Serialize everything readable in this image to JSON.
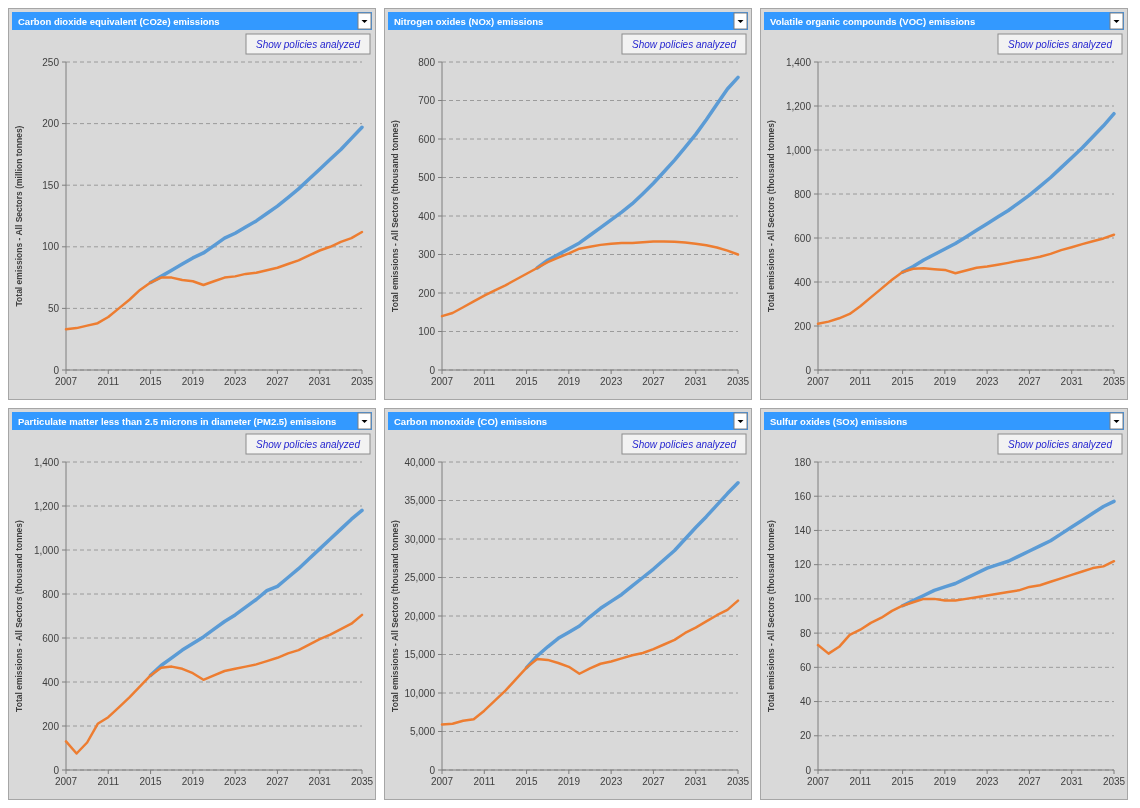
{
  "chart_data": [
    {
      "type": "line",
      "title": "Carbon dioxide equivalent (CO2e) emissions",
      "ylabel": "Total emissions - All Sectors (million tonnes)",
      "annotations": [
        "Show policies analyzed"
      ],
      "x": [
        2007,
        2008,
        2009,
        2010,
        2011,
        2012,
        2013,
        2014,
        2015,
        2016,
        2017,
        2018,
        2019,
        2020,
        2021,
        2022,
        2023,
        2024,
        2025,
        2026,
        2027,
        2028,
        2029,
        2030,
        2031,
        2032,
        2033,
        2034,
        2035
      ],
      "xlim": [
        2007,
        2035
      ],
      "xticks": [
        2007,
        2011,
        2015,
        2019,
        2023,
        2027,
        2031,
        2035
      ],
      "ylim": [
        0,
        250
      ],
      "yticks": [
        0,
        50,
        100,
        150,
        200,
        250
      ],
      "grid": "y",
      "line_style": "solid",
      "series": [
        {
          "color": "#5b9bd5",
          "values": [
            null,
            null,
            null,
            null,
            null,
            null,
            null,
            null,
            71,
            76,
            81,
            86,
            91,
            95,
            101,
            107,
            111,
            116,
            121,
            127,
            133,
            140,
            147,
            155,
            163,
            171,
            179,
            188,
            197
          ]
        },
        {
          "color": "#ed7d31",
          "values": [
            33,
            34,
            36,
            38,
            43,
            50,
            57,
            65,
            71,
            75,
            75,
            73,
            72,
            69,
            72,
            75,
            76,
            78,
            79,
            81,
            83,
            86,
            89,
            93,
            97,
            100,
            104,
            107,
            112
          ]
        }
      ]
    },
    {
      "type": "line",
      "title": "Nitrogen oxides (NOx) emissions",
      "ylabel": "Total emissions - All Sectors (thousand tonnes)",
      "annotations": [
        "Show policies analyzed"
      ],
      "x": [
        2007,
        2008,
        2009,
        2010,
        2011,
        2012,
        2013,
        2014,
        2015,
        2016,
        2017,
        2018,
        2019,
        2020,
        2021,
        2022,
        2023,
        2024,
        2025,
        2026,
        2027,
        2028,
        2029,
        2030,
        2031,
        2032,
        2033,
        2034,
        2035
      ],
      "xlim": [
        2007,
        2035
      ],
      "xticks": [
        2007,
        2011,
        2015,
        2019,
        2023,
        2027,
        2031,
        2035
      ],
      "ylim": [
        0,
        800
      ],
      "yticks": [
        0,
        100,
        200,
        300,
        400,
        500,
        600,
        700,
        800
      ],
      "grid": "y",
      "line_style": "solid",
      "series": [
        {
          "color": "#5b9bd5",
          "values": [
            null,
            null,
            null,
            null,
            null,
            null,
            null,
            null,
            null,
            265,
            285,
            300,
            315,
            330,
            350,
            370,
            390,
            410,
            432,
            458,
            485,
            515,
            545,
            578,
            612,
            650,
            690,
            730,
            760
          ]
        },
        {
          "color": "#ed7d31",
          "values": [
            140,
            148,
            163,
            178,
            193,
            207,
            220,
            235,
            250,
            265,
            280,
            292,
            303,
            315,
            320,
            325,
            328,
            330,
            330,
            332,
            334,
            334,
            333,
            331,
            328,
            324,
            318,
            310,
            300
          ]
        }
      ]
    },
    {
      "type": "line",
      "title": "Volatile organic compounds (VOC) emissions",
      "ylabel": "Total emissions - All Sectors (thousand tonnes)",
      "annotations": [
        "Show policies analyzed"
      ],
      "x": [
        2007,
        2008,
        2009,
        2010,
        2011,
        2012,
        2013,
        2014,
        2015,
        2016,
        2017,
        2018,
        2019,
        2020,
        2021,
        2022,
        2023,
        2024,
        2025,
        2026,
        2027,
        2028,
        2029,
        2030,
        2031,
        2032,
        2033,
        2034,
        2035
      ],
      "xlim": [
        2007,
        2035
      ],
      "xticks": [
        2007,
        2011,
        2015,
        2019,
        2023,
        2027,
        2031,
        2035
      ],
      "ylim": [
        0,
        1400
      ],
      "yticks": [
        0,
        {
          "value": 200,
          "label": "200"
        },
        {
          "value": 400,
          "label": "400"
        },
        {
          "value": 600,
          "label": "600"
        },
        {
          "value": 800,
          "label": "800"
        },
        {
          "value": 1000,
          "label": "1,000"
        },
        {
          "value": 1200,
          "label": "1,200"
        },
        {
          "value": 1400,
          "label": "1,400"
        }
      ],
      "grid": "y",
      "line_style": "solid",
      "series": [
        {
          "color": "#5b9bd5",
          "values": [
            null,
            null,
            null,
            null,
            null,
            null,
            null,
            null,
            445,
            470,
            500,
            525,
            550,
            575,
            605,
            635,
            665,
            695,
            725,
            760,
            795,
            835,
            875,
            920,
            965,
            1010,
            1060,
            1110,
            1165
          ]
        },
        {
          "color": "#ed7d31",
          "values": [
            210,
            220,
            235,
            255,
            290,
            330,
            370,
            410,
            445,
            460,
            462,
            458,
            455,
            440,
            452,
            465,
            470,
            478,
            487,
            497,
            505,
            515,
            528,
            545,
            558,
            572,
            585,
            598,
            615
          ]
        }
      ]
    },
    {
      "type": "line",
      "title": "Particulate matter less than 2.5 microns in diameter (PM2.5) emissions",
      "ylabel": "Total emissions - All Sectors (thousand tonnes)",
      "annotations": [
        "Show policies analyzed"
      ],
      "x": [
        2007,
        2008,
        2009,
        2010,
        2011,
        2012,
        2013,
        2014,
        2015,
        2016,
        2017,
        2018,
        2019,
        2020,
        2021,
        2022,
        2023,
        2024,
        2025,
        2026,
        2027,
        2028,
        2029,
        2030,
        2031,
        2032,
        2033,
        2034,
        2035
      ],
      "xlim": [
        2007,
        2035
      ],
      "xticks": [
        2007,
        2011,
        2015,
        2019,
        2023,
        2027,
        2031,
        2035
      ],
      "ylim": [
        0,
        1400
      ],
      "yticks": [
        0,
        {
          "value": 200,
          "label": "200"
        },
        {
          "value": 400,
          "label": "400"
        },
        {
          "value": 600,
          "label": "600"
        },
        {
          "value": 800,
          "label": "800"
        },
        {
          "value": 1000,
          "label": "1,000"
        },
        {
          "value": 1200,
          "label": "1,200"
        },
        {
          "value": 1400,
          "label": "1,400"
        }
      ],
      "grid": "y",
      "line_style": "solid",
      "series": [
        {
          "color": "#5b9bd5",
          "values": [
            null,
            null,
            null,
            null,
            null,
            null,
            null,
            null,
            430,
            475,
            510,
            545,
            575,
            605,
            640,
            675,
            705,
            740,
            775,
            815,
            835,
            875,
            915,
            960,
            1005,
            1050,
            1095,
            1140,
            1180
          ]
        },
        {
          "color": "#ed7d31",
          "values": [
            130,
            75,
            125,
            210,
            240,
            285,
            330,
            380,
            430,
            465,
            470,
            460,
            440,
            410,
            430,
            450,
            460,
            470,
            480,
            495,
            510,
            530,
            545,
            570,
            595,
            615,
            640,
            665,
            705
          ]
        }
      ]
    },
    {
      "type": "line",
      "title": "Carbon monoxide (CO) emissions",
      "ylabel": "Total emissions - All Sectors (thousand tonnes)",
      "annotations": [
        "Show policies analyzed"
      ],
      "x": [
        2007,
        2008,
        2009,
        2010,
        2011,
        2012,
        2013,
        2014,
        2015,
        2016,
        2017,
        2018,
        2019,
        2020,
        2021,
        2022,
        2023,
        2024,
        2025,
        2026,
        2027,
        2028,
        2029,
        2030,
        2031,
        2032,
        2033,
        2034,
        2035
      ],
      "xlim": [
        2007,
        2035
      ],
      "xticks": [
        2007,
        2011,
        2015,
        2019,
        2023,
        2027,
        2031,
        2035
      ],
      "ylim": [
        0,
        40000
      ],
      "yticks": [
        0,
        {
          "value": 5000,
          "label": "5,000"
        },
        {
          "value": 10000,
          "label": "10,000"
        },
        {
          "value": 15000,
          "label": "15,000"
        },
        {
          "value": 20000,
          "label": "20,000"
        },
        {
          "value": 25000,
          "label": "25,000"
        },
        {
          "value": 30000,
          "label": "30,000"
        },
        {
          "value": 35000,
          "label": "35,000"
        },
        {
          "value": 40000,
          "label": "40,000"
        }
      ],
      "grid": "y",
      "line_style": "solid",
      "series": [
        {
          "color": "#5b9bd5",
          "values": [
            null,
            null,
            null,
            null,
            null,
            null,
            null,
            null,
            13300,
            14800,
            16000,
            17100,
            17900,
            18700,
            19900,
            21000,
            21900,
            22800,
            23900,
            25000,
            26100,
            27300,
            28500,
            30000,
            31500,
            32900,
            34400,
            35900,
            37300
          ]
        },
        {
          "color": "#ed7d31",
          "values": [
            5900,
            6000,
            6400,
            6600,
            7700,
            9000,
            10300,
            11800,
            13300,
            14400,
            14300,
            13900,
            13400,
            12500,
            13200,
            13800,
            14100,
            14500,
            14900,
            15200,
            15700,
            16300,
            16900,
            17800,
            18500,
            19300,
            20100,
            20800,
            22000
          ]
        }
      ]
    },
    {
      "type": "line",
      "title": "Sulfur oxides (SOx) emissions",
      "ylabel": "Total emissions - All Sectors (thousand tonnes)",
      "annotations": [
        "Show policies analyzed"
      ],
      "x": [
        2007,
        2008,
        2009,
        2010,
        2011,
        2012,
        2013,
        2014,
        2015,
        2016,
        2017,
        2018,
        2019,
        2020,
        2021,
        2022,
        2023,
        2024,
        2025,
        2026,
        2027,
        2028,
        2029,
        2030,
        2031,
        2032,
        2033,
        2034,
        2035
      ],
      "xlim": [
        2007,
        2035
      ],
      "xticks": [
        2007,
        2011,
        2015,
        2019,
        2023,
        2027,
        2031,
        2035
      ],
      "ylim": [
        0,
        180
      ],
      "yticks": [
        0,
        20,
        40,
        60,
        80,
        100,
        120,
        140,
        160,
        180
      ],
      "grid": "y",
      "line_style": "solid",
      "series": [
        {
          "color": "#5b9bd5",
          "values": [
            null,
            null,
            null,
            null,
            null,
            null,
            null,
            null,
            96,
            99,
            102,
            105,
            107,
            109,
            112,
            115,
            118,
            120,
            122,
            125,
            128,
            131,
            134,
            138,
            142,
            146,
            150,
            154,
            157
          ]
        },
        {
          "color": "#ed7d31",
          "values": [
            73,
            68,
            72,
            79,
            82,
            86,
            89,
            93,
            96,
            98,
            100,
            100,
            99,
            99,
            100,
            101,
            102,
            103,
            104,
            105,
            107,
            108,
            110,
            112,
            114,
            116,
            118,
            119,
            122
          ]
        }
      ]
    }
  ]
}
